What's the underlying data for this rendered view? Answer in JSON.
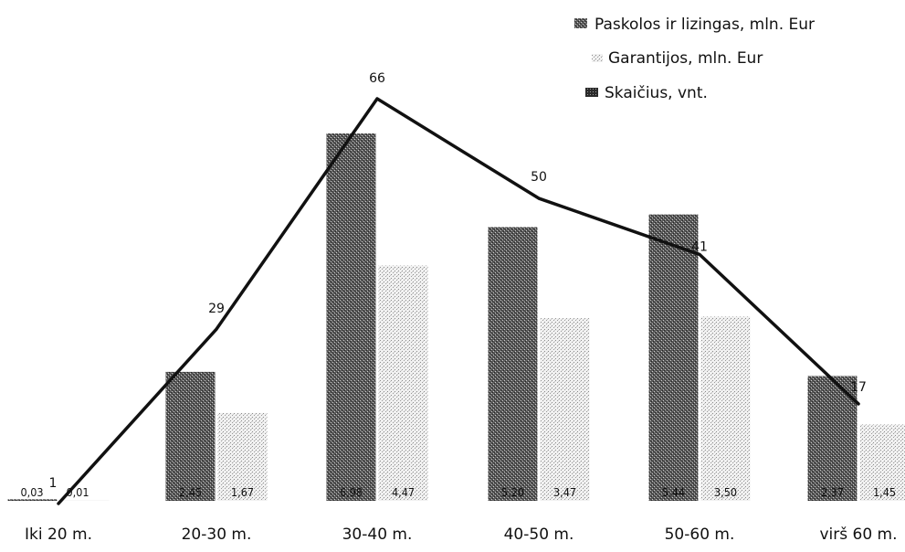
{
  "chart_data": {
    "type": "bar",
    "categories": [
      "Iki 20 m.",
      "20-30 m.",
      "30-40 m.",
      "40-50 m.",
      "50-60 m.",
      "virš 60 m."
    ],
    "series": [
      {
        "name": "Paskolos ir lizingas, mln. Eur",
        "kind": "bar",
        "values": [
          0.03,
          2.45,
          6.98,
          5.2,
          5.44,
          2.37
        ],
        "labels": [
          "0,03",
          "2,45",
          "6,98",
          "5,20",
          "5,44",
          "2,37"
        ],
        "color": "#3a3a3a",
        "pattern": "dense-dots"
      },
      {
        "name": "Garantijos, mln. Eur",
        "kind": "bar",
        "values": [
          0.01,
          1.67,
          4.47,
          3.47,
          3.5,
          1.45
        ],
        "labels": [
          "0,01",
          "1,67",
          "4,47",
          "3,47",
          "3,50",
          "1,45"
        ],
        "color": "#bdbdbd",
        "pattern": "sparse-dots"
      },
      {
        "name": "Skaičius, vnt.",
        "kind": "line",
        "values": [
          1,
          29,
          66,
          50,
          41,
          17
        ],
        "labels": [
          "1",
          "29",
          "66",
          "50",
          "41",
          "17"
        ],
        "color": "#111111"
      }
    ],
    "ylim_bars": [
      0,
      8
    ],
    "ylim_line": [
      0,
      75
    ],
    "legend_position": "top-right",
    "grid": false
  }
}
